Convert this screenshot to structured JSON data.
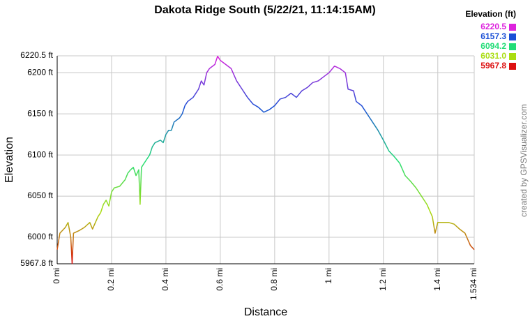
{
  "chart_data": {
    "type": "line",
    "title": "Dakota Ridge South (5/22/21, 11:14:15AM)",
    "x_label": "Distance",
    "y_label": "Elevation",
    "credit": "created by GPSVisualizer.com",
    "x": [
      0,
      0.01,
      0.03,
      0.04,
      0.05,
      0.055,
      0.06,
      0.08,
      0.1,
      0.12,
      0.13,
      0.15,
      0.16,
      0.17,
      0.18,
      0.19,
      0.2,
      0.21,
      0.23,
      0.25,
      0.26,
      0.27,
      0.28,
      0.29,
      0.3,
      0.305,
      0.31,
      0.32,
      0.34,
      0.35,
      0.36,
      0.38,
      0.39,
      0.4,
      0.41,
      0.42,
      0.43,
      0.45,
      0.46,
      0.47,
      0.48,
      0.5,
      0.51,
      0.52,
      0.53,
      0.54,
      0.55,
      0.56,
      0.58,
      0.59,
      0.6,
      0.62,
      0.64,
      0.66,
      0.68,
      0.7,
      0.72,
      0.74,
      0.76,
      0.78,
      0.8,
      0.82,
      0.84,
      0.86,
      0.88,
      0.9,
      0.92,
      0.94,
      0.96,
      0.98,
      1.0,
      1.02,
      1.04,
      1.06,
      1.07,
      1.09,
      1.1,
      1.12,
      1.14,
      1.16,
      1.18,
      1.2,
      1.22,
      1.24,
      1.26,
      1.28,
      1.3,
      1.32,
      1.34,
      1.36,
      1.38,
      1.39,
      1.4,
      1.44,
      1.46,
      1.48,
      1.5,
      1.52,
      1.534
    ],
    "values": [
      5985,
      6005,
      6012,
      6018,
      6000,
      5968,
      6005,
      6008,
      6012,
      6018,
      6010,
      6025,
      6030,
      6040,
      6045,
      6038,
      6055,
      6060,
      6062,
      6070,
      6078,
      6082,
      6085,
      6075,
      6082,
      6040,
      6085,
      6090,
      6100,
      6110,
      6115,
      6118,
      6115,
      6125,
      6130,
      6130,
      6140,
      6145,
      6150,
      6160,
      6165,
      6170,
      6175,
      6180,
      6190,
      6185,
      6200,
      6205,
      6210,
      6220,
      6215,
      6210,
      6205,
      6190,
      6180,
      6170,
      6162,
      6158,
      6152,
      6155,
      6160,
      6168,
      6170,
      6175,
      6170,
      6178,
      6182,
      6188,
      6190,
      6195,
      6200,
      6208,
      6205,
      6200,
      6180,
      6178,
      6165,
      6160,
      6150,
      6140,
      6130,
      6118,
      6105,
      6098,
      6090,
      6075,
      6068,
      6060,
      6050,
      6040,
      6025,
      6005,
      6018,
      6018,
      6016,
      6010,
      6005,
      5990,
      5985
    ],
    "xlim": [
      0,
      1.534
    ],
    "ylim": [
      5967.8,
      6220.5
    ],
    "xticks": [
      {
        "value": 0,
        "label": "0 mi"
      },
      {
        "value": 0.2,
        "label": "0.2 mi"
      },
      {
        "value": 0.4,
        "label": "0.4 mi"
      },
      {
        "value": 0.6,
        "label": "0.6 mi"
      },
      {
        "value": 0.8,
        "label": "0.8 mi"
      },
      {
        "value": 1,
        "label": "1 mi"
      },
      {
        "value": 1.2,
        "label": "1.2 mi"
      },
      {
        "value": 1.4,
        "label": "1.4 mi"
      },
      {
        "value": 1.534,
        "label": "1.534 mi"
      }
    ],
    "yticks": [
      {
        "value": 5967.8,
        "label": "5967.8 ft"
      },
      {
        "value": 6000,
        "label": "6000 ft"
      },
      {
        "value": 6050,
        "label": "6050 ft"
      },
      {
        "value": 6100,
        "label": "6100 ft"
      },
      {
        "value": 6150,
        "label": "6150 ft"
      },
      {
        "value": 6200,
        "label": "6200 ft"
      },
      {
        "value": 6220.5,
        "label": "6220.5 ft"
      }
    ],
    "grid": true,
    "legend": {
      "title": "Elevation (ft)",
      "items": [
        {
          "value": 6220.5,
          "color": "#dd22dd"
        },
        {
          "value": 6157.3,
          "color": "#1a4fd6"
        },
        {
          "value": 6094.2,
          "color": "#22dd77"
        },
        {
          "value": 6031,
          "label": "6031.0",
          "color": "#aadd11"
        },
        {
          "value": 5967.8,
          "color": "#dd1111"
        }
      ]
    }
  }
}
